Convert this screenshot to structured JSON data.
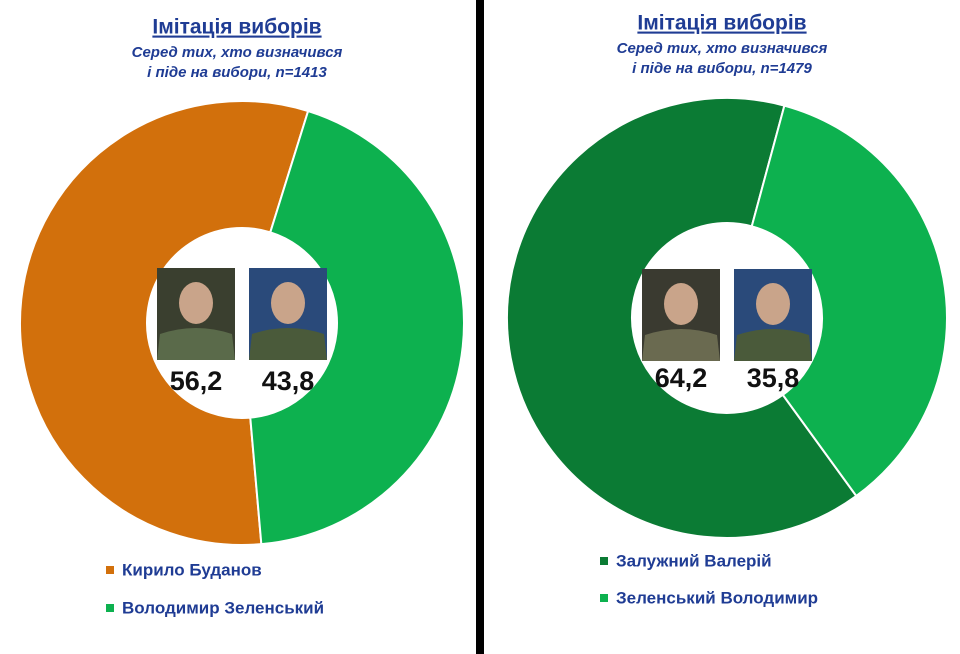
{
  "chart_data": [
    {
      "type": "donut",
      "title": "Імітація виборів",
      "subtitle": [
        "Серед тих, хто визначився",
        "і піде на вибори, n=1413"
      ],
      "categories": [
        "Кирило Буданов",
        "Володимир Зеленський"
      ],
      "values": [
        56.2,
        43.8
      ],
      "value_labels": [
        "56,2",
        "43,8"
      ],
      "colors": [
        "#d2700c",
        "#0db14f"
      ]
    },
    {
      "type": "donut",
      "title": "Імітація виборів",
      "subtitle": [
        "Серед тих, хто визначився",
        "і піде на вибори, n=1479"
      ],
      "categories": [
        "Залужний Валерій",
        "Зеленський Володимир"
      ],
      "values": [
        64.2,
        35.8
      ],
      "value_labels": [
        "64,2",
        "35,8"
      ],
      "colors": [
        "#0b7b34",
        "#0db14f"
      ]
    }
  ]
}
